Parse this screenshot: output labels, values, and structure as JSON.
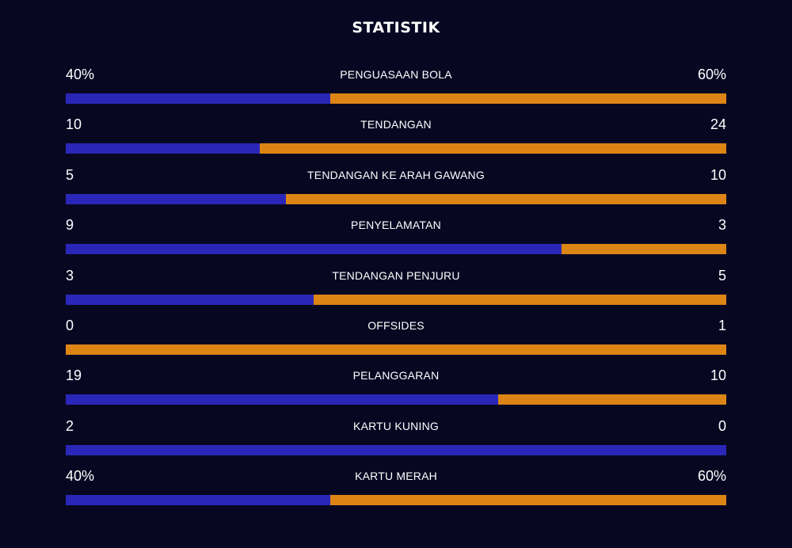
{
  "title": "STATISTIK",
  "colors": {
    "background": "#080722",
    "left_team": "#2a27b8",
    "right_team": "#dc8515"
  },
  "stats": [
    {
      "label": "PENGUASAAN BOLA",
      "left": "40%",
      "right": "60%",
      "left_share": 0.4
    },
    {
      "label": "TENDANGAN",
      "left": "10",
      "right": "24",
      "left_share": 0.294
    },
    {
      "label": "TENDANGAN KE ARAH GAWANG",
      "left": "5",
      "right": "10",
      "left_share": 0.333
    },
    {
      "label": "PENYELAMATAN",
      "left": "9",
      "right": "3",
      "left_share": 0.75
    },
    {
      "label": "TENDANGAN PENJURU",
      "left": "3",
      "right": "5",
      "left_share": 0.375
    },
    {
      "label": "OFFSIDES",
      "left": "0",
      "right": "1",
      "left_share": 0.0
    },
    {
      "label": "PELANGGARAN",
      "left": "19",
      "right": "10",
      "left_share": 0.655
    },
    {
      "label": "KARTU KUNING",
      "left": "2",
      "right": "0",
      "left_share": 1.0
    },
    {
      "label": "KARTU MERAH",
      "left": "40%",
      "right": "60%",
      "left_share": 0.4
    }
  ]
}
